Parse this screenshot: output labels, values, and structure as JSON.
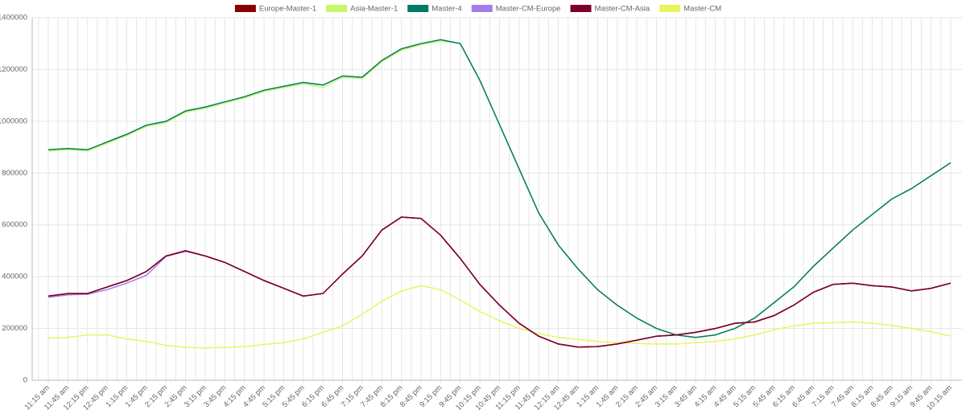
{
  "chart_data": {
    "type": "line",
    "categories": [
      "11:15 am",
      "11:45 am",
      "12:15 pm",
      "12:45 pm",
      "1:15 pm",
      "1:45 pm",
      "2:15 pm",
      "2:45 pm",
      "3:15 pm",
      "3:45 pm",
      "4:15 pm",
      "4:45 pm",
      "5:15 pm",
      "5:45 pm",
      "6:15 pm",
      "6:45 pm",
      "7:15 pm",
      "7:45 pm",
      "8:15 pm",
      "8:45 pm",
      "9:15 pm",
      "9:45 pm",
      "10:15 pm",
      "10:45 pm",
      "11:15 pm",
      "11:45 pm",
      "12:15 am",
      "12:45 am",
      "1:15 am",
      "1:45 am",
      "2:15 am",
      "2:45 am",
      "3:15 am",
      "3:45 am",
      "4:15 am",
      "4:45 am",
      "5:15 am",
      "5:45 am",
      "6:15 am",
      "6:45 am",
      "7:15 am",
      "7:45 am",
      "8:15 am",
      "8:45 am",
      "9:15 am",
      "9:45 am",
      "10:15 am"
    ],
    "series": [
      {
        "name": "Europe-Master-1",
        "color": "#8b0000",
        "values": [
          325000,
          335000,
          335000,
          360000,
          385000,
          420000,
          480000,
          500000,
          480000,
          455000,
          420000,
          385000,
          355000,
          325000,
          335000,
          410000,
          480000,
          580000,
          630000,
          625000,
          560000,
          470000,
          370000,
          290000,
          220000,
          170000,
          140000,
          128000,
          130000,
          140000,
          155000,
          170000,
          175000,
          185000,
          200000,
          220000,
          225000,
          250000,
          290000,
          340000,
          370000,
          375000,
          365000,
          360000,
          345000,
          355000,
          375000
        ]
      },
      {
        "name": "Asia-Master-1",
        "color": "#c6f86c",
        "values": [
          885000,
          890000,
          885000,
          915000,
          945000,
          980000,
          995000,
          1035000,
          1050000,
          1070000,
          1090000,
          1115000,
          1130000,
          1145000,
          1130000,
          1170000,
          1165000,
          1230000,
          1275000,
          1295000,
          1310000,
          1300000,
          1158000,
          987000,
          816000,
          646000,
          522000,
          430000,
          350000,
          290000,
          240000,
          200000,
          175000,
          165000,
          175000,
          200000,
          240000,
          300000,
          360000,
          440000,
          510000,
          580000,
          640000,
          700000,
          740000,
          790000,
          840000
        ]
      },
      {
        "name": "Master-4",
        "color": "#007a62",
        "values": [
          890000,
          895000,
          890000,
          920000,
          950000,
          985000,
          1000000,
          1040000,
          1055000,
          1075000,
          1095000,
          1120000,
          1135000,
          1150000,
          1140000,
          1175000,
          1170000,
          1235000,
          1280000,
          1300000,
          1315000,
          1300000,
          1158000,
          987000,
          816000,
          646000,
          522000,
          430000,
          350000,
          290000,
          240000,
          200000,
          175000,
          165000,
          175000,
          200000,
          240000,
          300000,
          360000,
          440000,
          510000,
          580000,
          640000,
          700000,
          740000,
          790000,
          840000
        ]
      },
      {
        "name": "Master-CM-Europe",
        "color": "#a47de8",
        "values": [
          320000,
          330000,
          332000,
          350000,
          375000,
          405000,
          478000,
          498000,
          480000,
          455000,
          420000,
          385000,
          355000,
          325000,
          335000,
          410000,
          480000,
          580000,
          630000,
          625000,
          560000,
          470000,
          370000,
          290000,
          220000,
          170000,
          140000,
          128000,
          130000,
          140000,
          155000,
          170000,
          175000,
          185000,
          200000,
          220000,
          225000,
          250000,
          290000,
          340000,
          370000,
          375000,
          365000,
          360000,
          345000,
          355000,
          375000
        ]
      },
      {
        "name": "Master-CM-Asia",
        "color": "#7d0028",
        "values": [
          325000,
          335000,
          335000,
          360000,
          385000,
          420000,
          480000,
          500000,
          480000,
          455000,
          420000,
          385000,
          355000,
          325000,
          335000,
          410000,
          480000,
          580000,
          630000,
          625000,
          560000,
          470000,
          370000,
          290000,
          220000,
          170000,
          140000,
          128000,
          130000,
          140000,
          155000,
          170000,
          175000,
          185000,
          200000,
          220000,
          225000,
          250000,
          290000,
          340000,
          370000,
          375000,
          365000,
          360000,
          345000,
          355000,
          375000
        ]
      },
      {
        "name": "Master-CM",
        "color": "#e8f560",
        "values": [
          162000,
          165000,
          175000,
          175000,
          160000,
          150000,
          135000,
          127000,
          125000,
          127000,
          130000,
          138000,
          145000,
          160000,
          185000,
          210000,
          255000,
          305000,
          345000,
          365000,
          350000,
          310000,
          265000,
          230000,
          200000,
          180000,
          165000,
          158000,
          150000,
          145000,
          142000,
          140000,
          140000,
          145000,
          150000,
          160000,
          175000,
          195000,
          210000,
          220000,
          222000,
          225000,
          220000,
          212000,
          200000,
          188000,
          170000
        ]
      }
    ],
    "ylim": [
      0,
      1400000
    ],
    "yticks": [
      0,
      200000,
      400000,
      600000,
      800000,
      1000000,
      1200000,
      1400000
    ],
    "grid": true,
    "legend": "top"
  }
}
